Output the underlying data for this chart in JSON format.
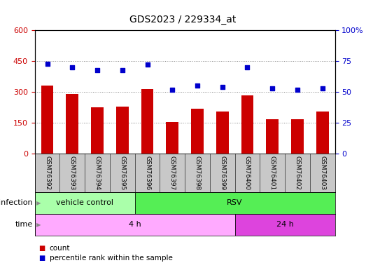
{
  "title": "GDS2023 / 229334_at",
  "samples": [
    "GSM76392",
    "GSM76393",
    "GSM76394",
    "GSM76395",
    "GSM76396",
    "GSM76397",
    "GSM76398",
    "GSM76399",
    "GSM76400",
    "GSM76401",
    "GSM76402",
    "GSM76403"
  ],
  "counts": [
    330,
    290,
    225,
    230,
    315,
    155,
    220,
    205,
    285,
    168,
    168,
    205
  ],
  "percentile_ranks": [
    73,
    70,
    68,
    68,
    72,
    52,
    55,
    54,
    70,
    53,
    52,
    53
  ],
  "bar_color": "#cc0000",
  "dot_color": "#0000cc",
  "ylim_left": [
    0,
    600
  ],
  "ylim_right": [
    0,
    100
  ],
  "yticks_left": [
    0,
    150,
    300,
    450,
    600
  ],
  "ytick_labels_left": [
    "0",
    "150",
    "300",
    "450",
    "600"
  ],
  "yticks_right": [
    0,
    25,
    50,
    75,
    100
  ],
  "ytick_labels_right": [
    "0",
    "25",
    "50",
    "75",
    "100%"
  ],
  "infection_groups": [
    {
      "label": "vehicle control",
      "start": 0,
      "end": 4
    },
    {
      "label": "RSV",
      "start": 4,
      "end": 12
    }
  ],
  "time_groups": [
    {
      "label": "4 h",
      "start": 0,
      "end": 8
    },
    {
      "label": "24 h",
      "start": 8,
      "end": 12
    }
  ],
  "legend_count_label": "count",
  "legend_pct_label": "percentile rank within the sample",
  "xlabel_infection": "infection",
  "xlabel_time": "time",
  "bg_color": "#ffffff",
  "tick_label_area_color": "#c8c8c8",
  "infection_light_green": "#aaffaa",
  "infection_dark_green": "#55ee55",
  "time_light_pink": "#ffaaff",
  "time_dark_pink": "#dd44dd",
  "grid_color": "#888888",
  "border_color": "#000000"
}
